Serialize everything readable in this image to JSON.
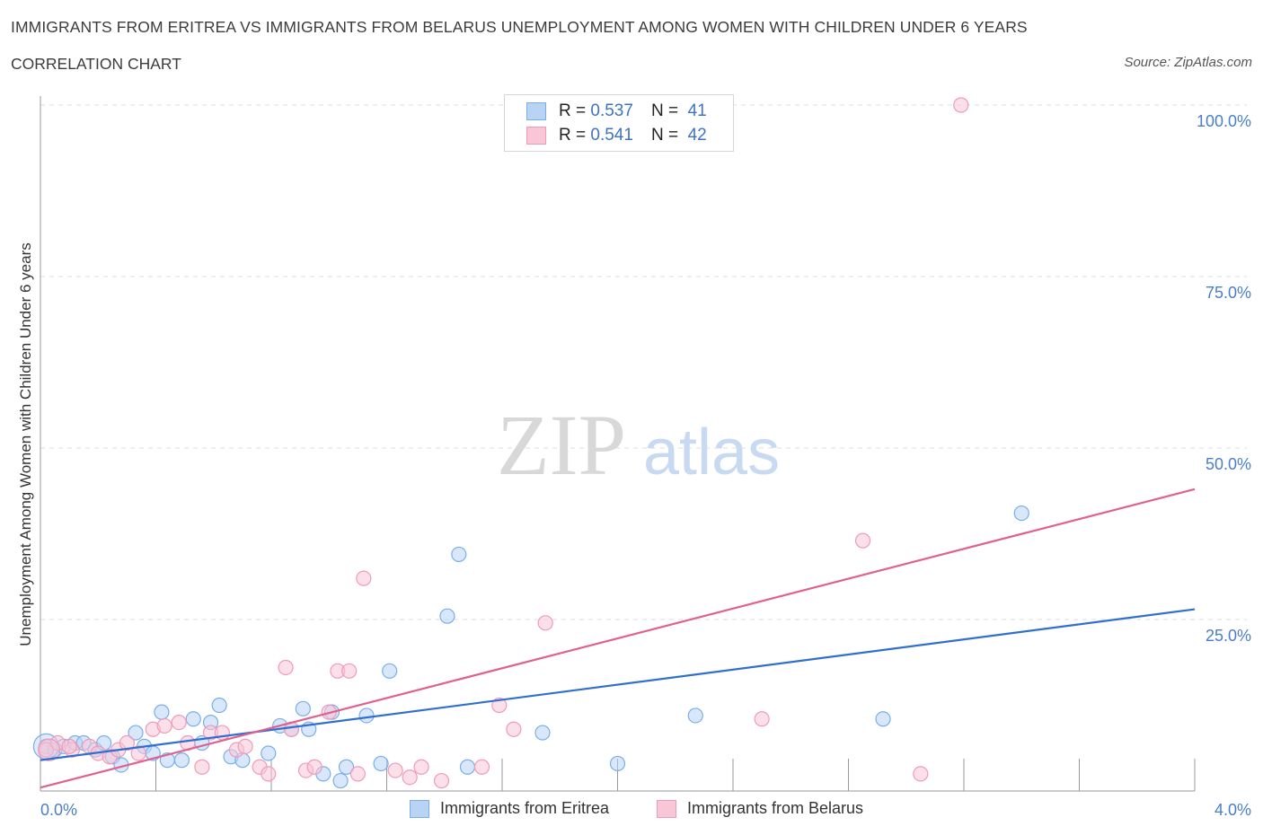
{
  "title": "IMMIGRANTS FROM ERITREA VS IMMIGRANTS FROM BELARUS UNEMPLOYMENT AMONG WOMEN WITH CHILDREN UNDER 6 YEARS",
  "subtitle": "CORRELATION CHART",
  "source": "Source: ZipAtlas.com",
  "watermark": {
    "zip": "ZIP",
    "atlas": "atlas"
  },
  "colors": {
    "eritrea": "#7aaee8",
    "eritrea_fill": "#b9d3f5",
    "eritrea_line": "#2f6fd0",
    "belarus": "#f09ab8",
    "belarus_fill": "#f8c6d7",
    "belarus_line": "#e06090",
    "axis_text": "#4a7fc7"
  },
  "legend": {
    "rows": [
      {
        "r_label": "R =",
        "r_value": "0.537",
        "n_label": "N =",
        "n_value": "41"
      },
      {
        "r_label": "R =",
        "r_value": "0.541",
        "n_label": "N =",
        "n_value": "42"
      }
    ]
  },
  "bottom_legend": [
    "Immigrants from Eritrea",
    "Immigrants from Belarus"
  ],
  "chart_data": {
    "type": "scatter",
    "xlabel": "",
    "ylabel": "Unemployment Among Women with Children Under 6 years",
    "xlim": [
      0,
      4
    ],
    "ylim": [
      0,
      100
    ],
    "x_tick_labels": [
      "0.0%",
      "4.0%"
    ],
    "y_tick_labels": [
      "25.0%",
      "50.0%",
      "75.0%",
      "100.0%"
    ],
    "y_ticks": [
      25,
      50,
      75,
      100
    ],
    "grid": true,
    "series": [
      {
        "name": "Immigrants from Eritrea",
        "points": [
          [
            0.02,
            6.5
          ],
          [
            0.05,
            6.0
          ],
          [
            0.08,
            6.5
          ],
          [
            0.12,
            7.0
          ],
          [
            0.15,
            7.0
          ],
          [
            0.19,
            6.0
          ],
          [
            0.22,
            7.0
          ],
          [
            0.25,
            5.0
          ],
          [
            0.28,
            3.8
          ],
          [
            0.33,
            8.5
          ],
          [
            0.36,
            6.5
          ],
          [
            0.39,
            5.5
          ],
          [
            0.42,
            11.5
          ],
          [
            0.44,
            4.5
          ],
          [
            0.49,
            4.5
          ],
          [
            0.53,
            10.5
          ],
          [
            0.56,
            7.0
          ],
          [
            0.59,
            10.0
          ],
          [
            0.62,
            12.5
          ],
          [
            0.66,
            5.0
          ],
          [
            0.7,
            4.5
          ],
          [
            0.79,
            5.5
          ],
          [
            0.83,
            9.5
          ],
          [
            0.87,
            9.0
          ],
          [
            0.91,
            12.0
          ],
          [
            0.93,
            9.0
          ],
          [
            0.98,
            2.5
          ],
          [
            1.01,
            11.5
          ],
          [
            1.04,
            1.5
          ],
          [
            1.06,
            3.5
          ],
          [
            1.13,
            11.0
          ],
          [
            1.18,
            4.0
          ],
          [
            1.21,
            17.5
          ],
          [
            1.41,
            25.5
          ],
          [
            1.45,
            34.5
          ],
          [
            1.48,
            3.5
          ],
          [
            1.74,
            8.5
          ],
          [
            2.0,
            4.0
          ],
          [
            2.27,
            11.0
          ],
          [
            2.92,
            10.5
          ],
          [
            3.4,
            40.5
          ]
        ],
        "trend": {
          "x": [
            0,
            4
          ],
          "y": [
            4.5,
            26.5
          ]
        }
      },
      {
        "name": "Immigrants from Belarus",
        "points": [
          [
            0.02,
            6.0
          ],
          [
            0.06,
            7.0
          ],
          [
            0.11,
            6.0
          ],
          [
            0.17,
            6.5
          ],
          [
            0.2,
            5.5
          ],
          [
            0.24,
            5.0
          ],
          [
            0.27,
            6.0
          ],
          [
            0.3,
            7.0
          ],
          [
            0.34,
            5.5
          ],
          [
            0.39,
            9.0
          ],
          [
            0.43,
            9.5
          ],
          [
            0.48,
            10.0
          ],
          [
            0.51,
            7.0
          ],
          [
            0.56,
            3.5
          ],
          [
            0.59,
            8.5
          ],
          [
            0.63,
            8.5
          ],
          [
            0.68,
            6.0
          ],
          [
            0.71,
            6.5
          ],
          [
            0.76,
            3.5
          ],
          [
            0.79,
            2.5
          ],
          [
            0.85,
            18.0
          ],
          [
            0.87,
            9.0
          ],
          [
            0.92,
            3.0
          ],
          [
            0.95,
            3.5
          ],
          [
            1.0,
            11.5
          ],
          [
            1.03,
            17.5
          ],
          [
            1.07,
            17.5
          ],
          [
            1.1,
            2.5
          ],
          [
            1.12,
            31.0
          ],
          [
            1.23,
            3.0
          ],
          [
            1.28,
            2.0
          ],
          [
            1.32,
            3.5
          ],
          [
            1.39,
            1.5
          ],
          [
            1.53,
            3.5
          ],
          [
            1.59,
            12.5
          ],
          [
            1.64,
            9.0
          ],
          [
            1.75,
            24.5
          ],
          [
            2.5,
            10.5
          ],
          [
            2.85,
            36.5
          ],
          [
            3.05,
            2.5
          ],
          [
            3.19,
            100.0
          ],
          [
            0.1,
            6.5
          ]
        ],
        "trend": {
          "x": [
            0,
            4
          ],
          "y": [
            0.5,
            44.0
          ]
        }
      }
    ]
  }
}
